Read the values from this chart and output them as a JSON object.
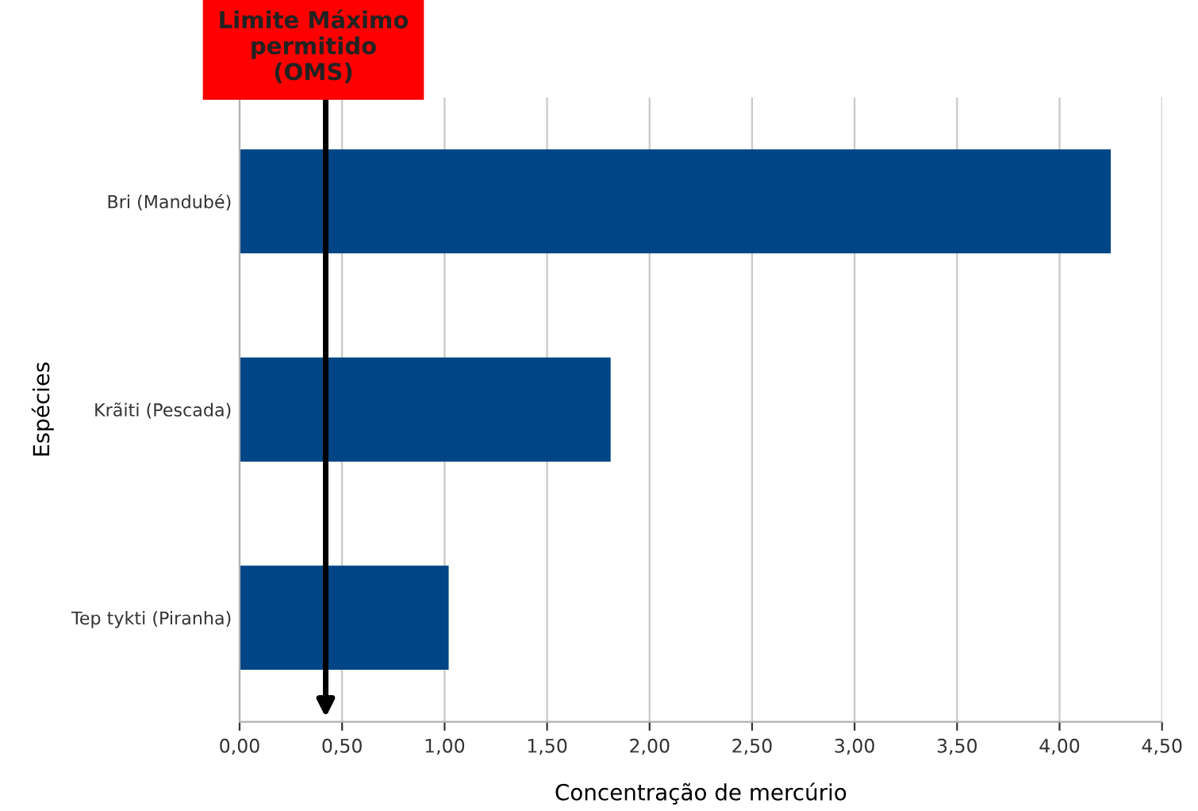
{
  "chart_data": {
    "type": "bar",
    "orientation": "horizontal",
    "categories": [
      "Bri (Mandubé)",
      "Krãiti (Pescada)",
      "Tep tykti (Piranha)"
    ],
    "values": [
      4.25,
      1.81,
      1.02
    ],
    "color": "#004586",
    "xlabel": "Concentração de mercúrio",
    "ylabel": "Espécies",
    "xlim": [
      0,
      4.5
    ],
    "xticks": [
      {
        "value": 0,
        "label": "0,00"
      },
      {
        "value": 0.5,
        "label": "0,50"
      },
      {
        "value": 1,
        "label": "1,00"
      },
      {
        "value": 1.5,
        "label": "1,50"
      },
      {
        "value": 2,
        "label": "2,00"
      },
      {
        "value": 2.5,
        "label": "2,50"
      },
      {
        "value": 3,
        "label": "3,00"
      },
      {
        "value": 3.5,
        "label": "3,50"
      },
      {
        "value": 4,
        "label": "4,00"
      },
      {
        "value": 4.5,
        "label": "4,50"
      }
    ],
    "grid": "x",
    "legend": false,
    "ref_lines": [
      {
        "axis": "x",
        "value": 0.42,
        "label": "Limite Máximo\npermitido\n(OMS)",
        "color": "#000000"
      }
    ]
  }
}
